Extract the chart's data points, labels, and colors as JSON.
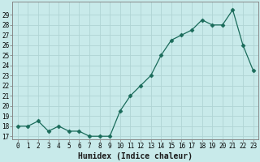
{
  "x": [
    0,
    1,
    2,
    3,
    4,
    5,
    6,
    7,
    8,
    9,
    10,
    11,
    12,
    13,
    14,
    15,
    16,
    17,
    18,
    19,
    20,
    21,
    22,
    23
  ],
  "y": [
    18,
    18,
    18.5,
    17.5,
    18,
    17.5,
    17.5,
    17,
    17,
    17,
    19.5,
    21,
    22,
    23,
    25,
    26.5,
    27,
    27.5,
    28.5,
    28,
    28,
    29.5,
    26,
    23.5
  ],
  "xlabel": "Humidex (Indice chaleur)",
  "line_color": "#1a6b5a",
  "marker": "D",
  "marker_size": 2.5,
  "bg_color": "#c8eaea",
  "grid_color": "#b0d4d4",
  "ylim_min": 17,
  "ylim_max": 30,
  "xlim_min": -0.5,
  "xlim_max": 23.5,
  "yticks": [
    17,
    18,
    19,
    20,
    21,
    22,
    23,
    24,
    25,
    26,
    27,
    28,
    29
  ],
  "xticks": [
    0,
    1,
    2,
    3,
    4,
    5,
    6,
    7,
    8,
    9,
    10,
    11,
    12,
    13,
    14,
    15,
    16,
    17,
    18,
    19,
    20,
    21,
    22,
    23
  ],
  "tick_fontsize": 5.5,
  "label_fontsize": 7,
  "spine_color": "#888888"
}
